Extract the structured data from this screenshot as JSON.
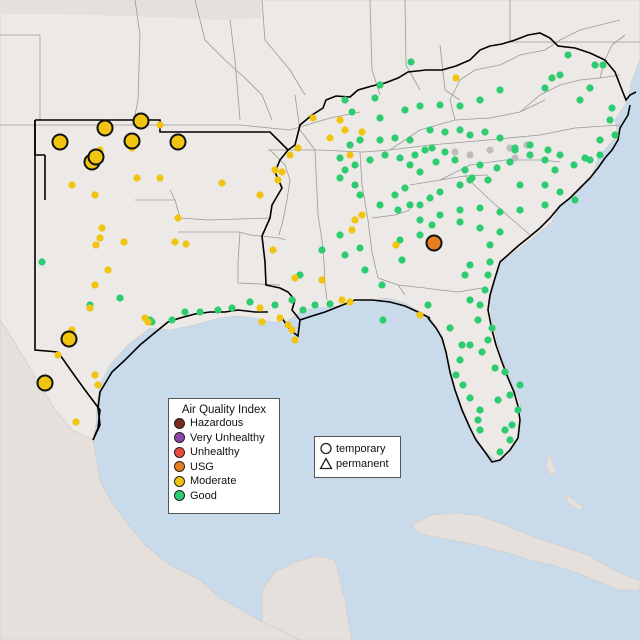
{
  "legend_aqi": {
    "title": "Air Quality Index",
    "items": [
      {
        "label": "Hazardous",
        "color": "#7b2a1e"
      },
      {
        "label": "Very Unhealthy",
        "color": "#8e44ad"
      },
      {
        "label": "Unhealthy",
        "color": "#e74c3c"
      },
      {
        "label": "USG",
        "color": "#e67e22"
      },
      {
        "label": "Moderate",
        "color": "#f1c40f"
      },
      {
        "label": "Good",
        "color": "#2ecc71"
      }
    ]
  },
  "legend_type": {
    "items": [
      {
        "label": "temporary",
        "icon": "circle-icon"
      },
      {
        "label": "permanent",
        "icon": "triangle-icon"
      }
    ]
  },
  "colors": {
    "water": "#c9dbea",
    "land": "#ece9e6",
    "state_border": "#9a9a9a",
    "region_outline": "#000000",
    "inactive": "#bdbdbd"
  }
}
